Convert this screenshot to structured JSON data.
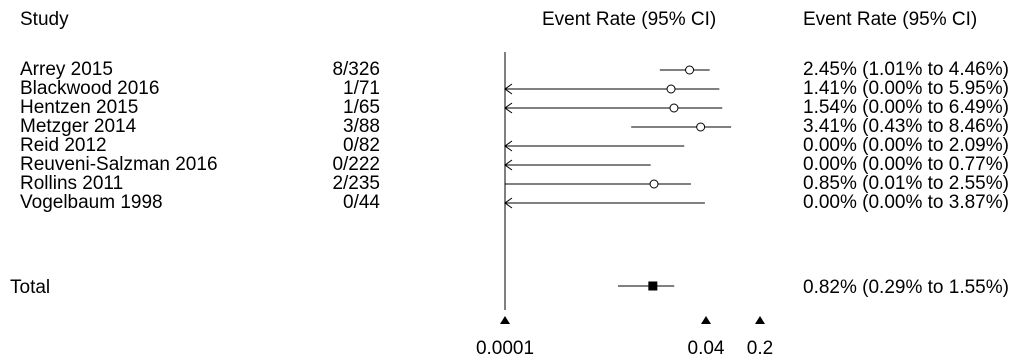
{
  "header": {
    "study_label": "Study",
    "plot_label": "Event Rate (95% CI)",
    "ci_label": "Event Rate (95% CI)"
  },
  "total": {
    "label": "Total",
    "ci_text": "0.82% (0.29% to 1.55%)"
  },
  "chart_data": {
    "type": "forest",
    "x_scale": "log",
    "x_ticks": [
      "0.0001",
      "0.04",
      "0.2"
    ],
    "x_tick_values": [
      0.0001,
      0.04,
      0.2
    ],
    "rows": [
      {
        "study": "Arrey 2015",
        "events": "8/326",
        "rate": 0.0245,
        "low": 0.0101,
        "high": 0.0446,
        "ci_text": "2.45% (1.01% to 4.46%)"
      },
      {
        "study": "Blackwood 2016",
        "events": "1/71",
        "rate": 0.0141,
        "low": 0.0,
        "high": 0.0595,
        "ci_text": "1.41% (0.00% to 5.95%)"
      },
      {
        "study": "Hentzen 2015",
        "events": "1/65",
        "rate": 0.0154,
        "low": 0.0,
        "high": 0.0649,
        "ci_text": "1.54% (0.00% to 6.49%)"
      },
      {
        "study": "Metzger 2014",
        "events": "3/88",
        "rate": 0.0341,
        "low": 0.0043,
        "high": 0.0846,
        "ci_text": "3.41% (0.43% to 8.46%)"
      },
      {
        "study": "Reid 2012",
        "events": "0/82",
        "rate": 0.0,
        "low": 0.0,
        "high": 0.0209,
        "ci_text": "0.00% (0.00% to 2.09%)"
      },
      {
        "study": "Reuveni-Salzman 2016",
        "events": "0/222",
        "rate": 0.0,
        "low": 0.0,
        "high": 0.0077,
        "ci_text": "0.00% (0.00% to 0.77%)"
      },
      {
        "study": "Rollins 2011",
        "events": "2/235",
        "rate": 0.0085,
        "low": 0.0001,
        "high": 0.0255,
        "ci_text": "0.85% (0.01% to 2.55%)"
      },
      {
        "study": "Vogelbaum 1998",
        "events": "0/44",
        "rate": 0.0,
        "low": 0.0,
        "high": 0.0387,
        "ci_text": "0.00% (0.00% to 3.87%)"
      }
    ],
    "total": {
      "rate": 0.0082,
      "low": 0.0029,
      "high": 0.0155
    }
  }
}
